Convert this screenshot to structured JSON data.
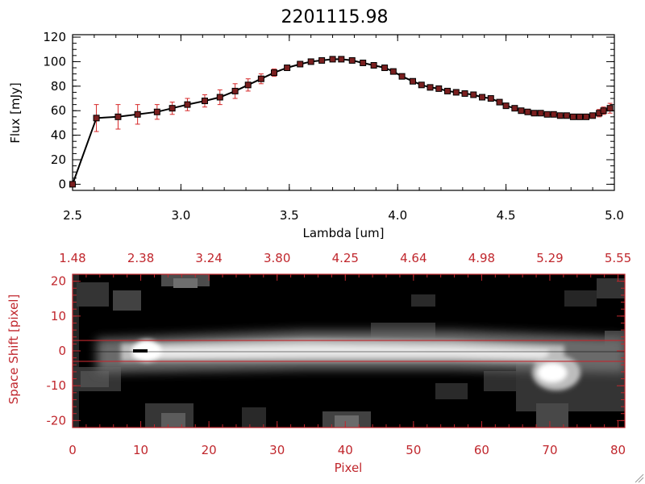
{
  "chart_data": [
    {
      "type": "line",
      "title": "2201115.98",
      "xlabel": "Lambda [um]",
      "ylabel": "Flux [mJy]",
      "xlim": [
        2.5,
        5.0
      ],
      "ylim": [
        -5,
        122
      ],
      "xticks": [
        "2.5",
        "3.0",
        "3.5",
        "4.0",
        "4.5",
        "5.0"
      ],
      "yticks": [
        "0",
        "20",
        "40",
        "60",
        "80",
        "100",
        "120"
      ],
      "colors": {
        "line": "#000000",
        "marker": "#7a1f1f",
        "errorbar": "#d62728"
      },
      "series": [
        {
          "x": [
            2.5,
            2.61,
            2.71,
            2.8,
            2.89,
            2.96,
            3.03,
            3.11,
            3.18,
            3.25,
            3.31,
            3.37,
            3.43,
            3.49,
            3.55,
            3.6,
            3.65,
            3.7,
            3.74,
            3.79,
            3.84,
            3.89,
            3.94,
            3.98,
            4.02,
            4.07,
            4.11,
            4.15,
            4.19,
            4.23,
            4.27,
            4.31,
            4.35,
            4.39,
            4.43,
            4.47,
            4.5,
            4.54,
            4.57,
            4.6,
            4.63,
            4.66,
            4.69,
            4.72,
            4.75,
            4.78,
            4.81,
            4.84,
            4.87,
            4.9,
            4.93,
            4.95,
            4.98
          ],
          "y": [
            0,
            54,
            55,
            57,
            59,
            62,
            65,
            68,
            71,
            76,
            81,
            86,
            91,
            95,
            98,
            100,
            101,
            102,
            102,
            101,
            99,
            97,
            95,
            92,
            88,
            84,
            81,
            79,
            78,
            76,
            75,
            74,
            73,
            71,
            70,
            67,
            64,
            62,
            60,
            59,
            58,
            58,
            57,
            57,
            56,
            56,
            55,
            55,
            55,
            56,
            58,
            60,
            62
          ],
          "yerr": [
            0,
            11,
            10,
            8,
            6,
            5,
            5,
            5,
            6,
            6,
            5,
            4,
            3,
            2,
            2,
            2,
            2,
            2,
            2,
            2,
            2,
            2,
            2,
            2,
            2,
            2,
            2,
            2,
            2,
            2,
            2,
            2,
            2,
            2,
            2,
            2,
            2,
            2,
            2,
            2,
            2,
            2,
            2,
            2,
            2,
            2,
            2,
            2,
            2,
            2,
            3,
            3,
            4
          ]
        }
      ]
    },
    {
      "type": "heatmap",
      "xlabel": "Pixel",
      "ylabel": "Space Shift [pixel]",
      "xlim": [
        0,
        81
      ],
      "ylim": [
        -22,
        22
      ],
      "xticks": [
        "0",
        "10",
        "20",
        "30",
        "40",
        "50",
        "60",
        "70",
        "80"
      ],
      "yticks": [
        "-20",
        "-10",
        "0",
        "10",
        "20"
      ],
      "top_axis_label_values": [
        "1.48",
        "2.38",
        "3.24",
        "3.80",
        "4.25",
        "4.64",
        "4.98",
        "5.29",
        "5.55"
      ],
      "aperture_lines_y": [
        3,
        -3
      ],
      "colors": {
        "axis": "#c0272d",
        "aperture": "#c0272d",
        "trace": "#ffffff",
        "background": "#000000"
      }
    }
  ]
}
